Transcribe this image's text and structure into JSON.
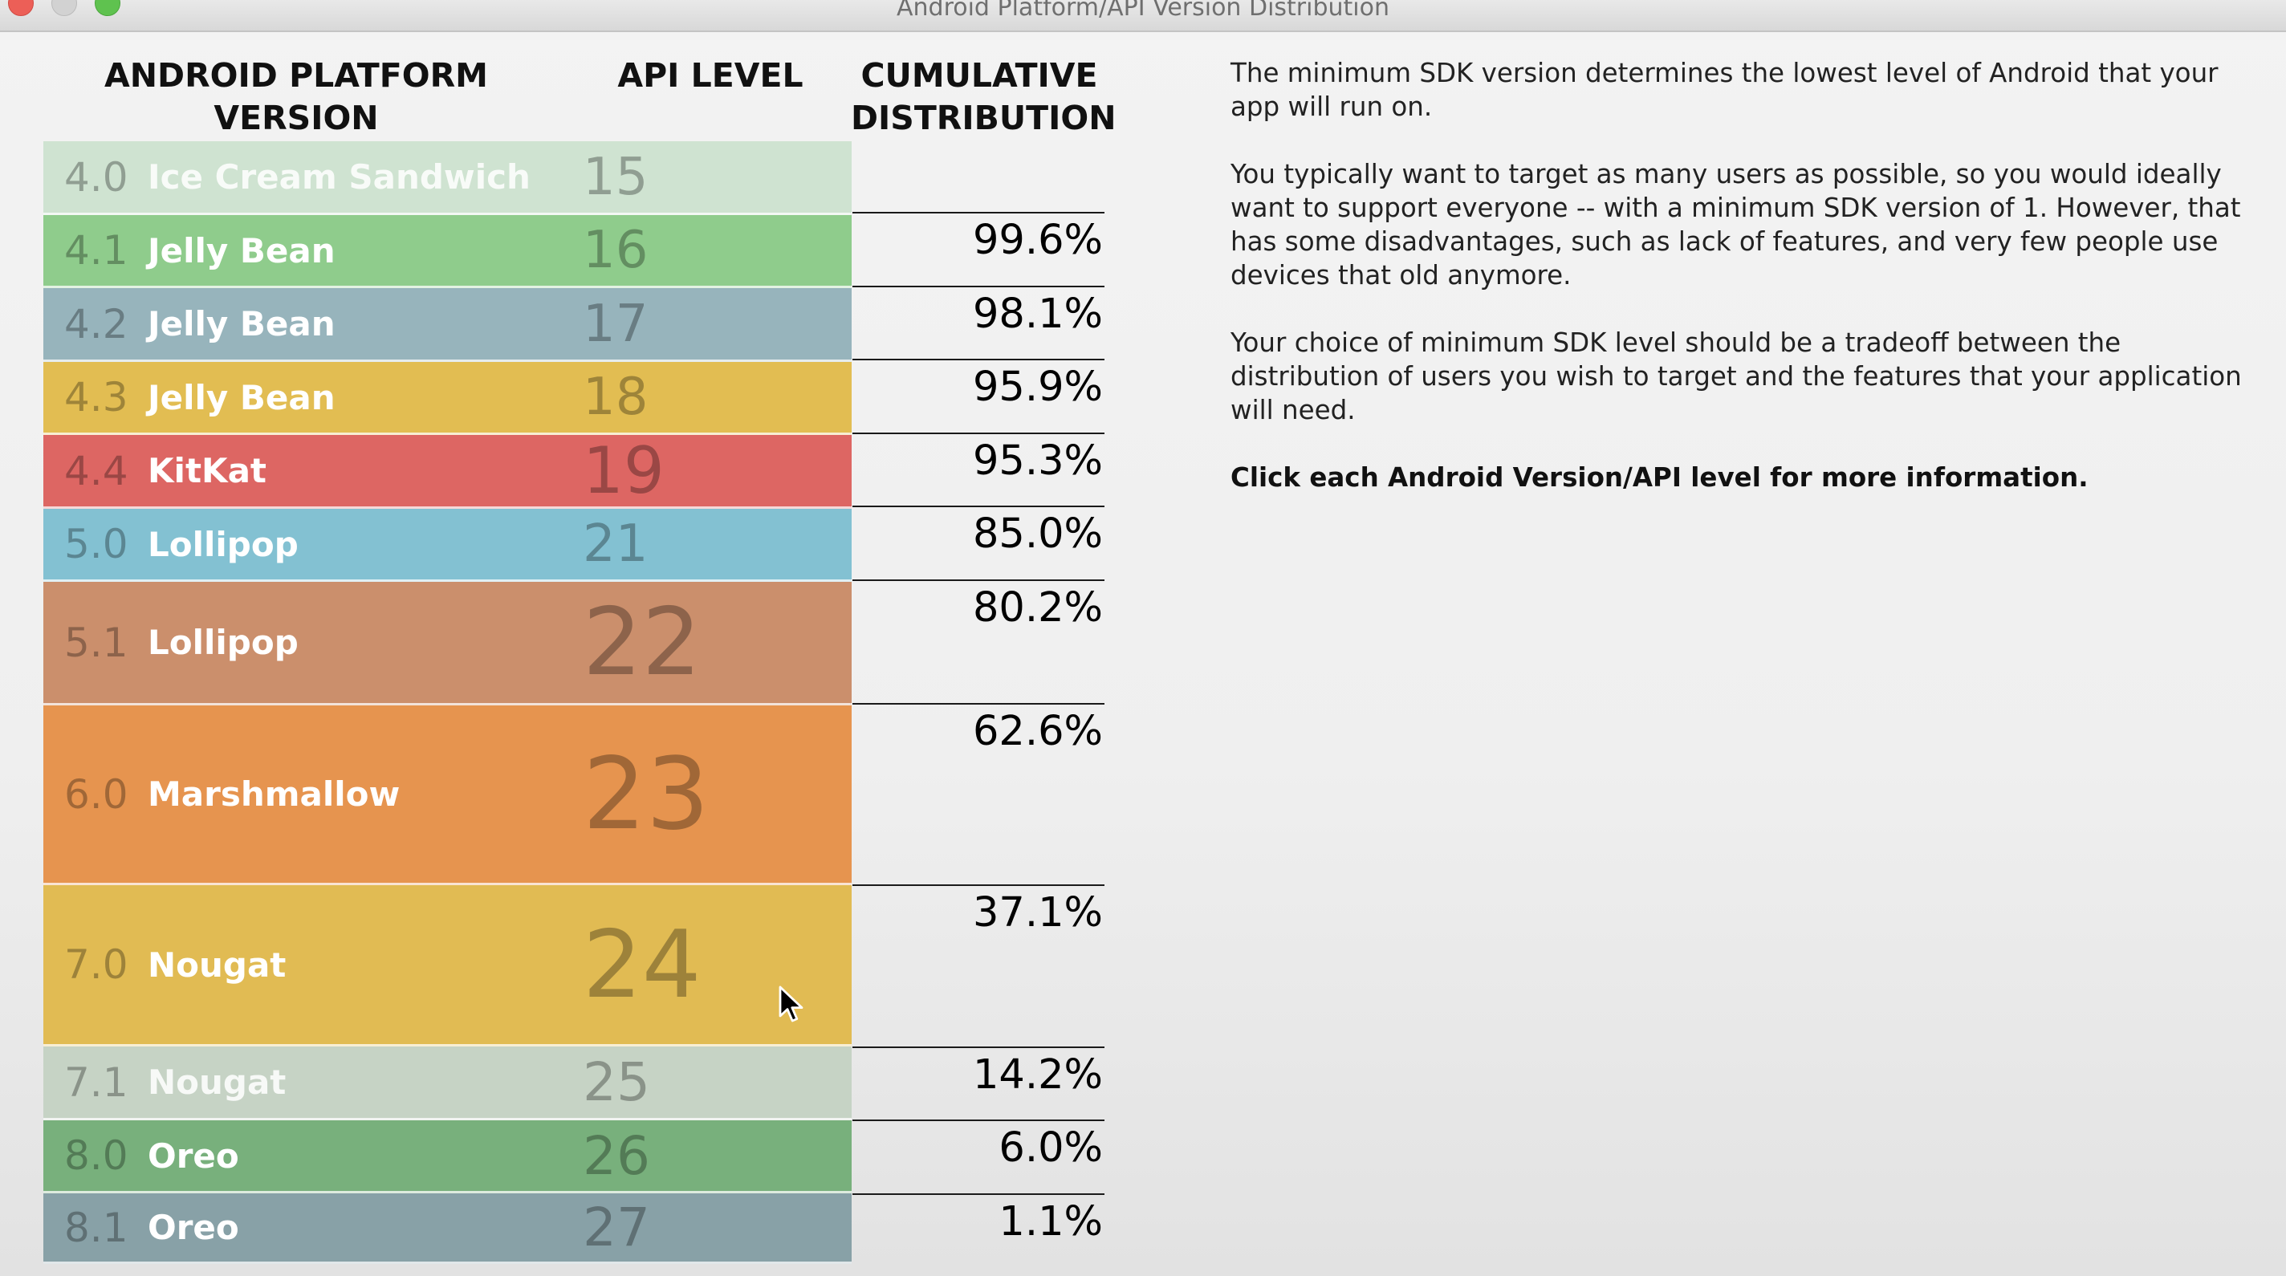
{
  "window": {
    "title": "Android Platform/API Version Distribution"
  },
  "columns": {
    "version": "ANDROID PLATFORM\nVERSION",
    "api": "API LEVEL",
    "cumulative": "CUMULATIVE\nDISTRIBUTION"
  },
  "rows": [
    {
      "version": "4.0",
      "name": "Ice Cream Sandwich",
      "api": "15",
      "cumulative": "",
      "color": "#cfe3d1"
    },
    {
      "version": "4.1",
      "name": "Jelly Bean",
      "api": "16",
      "cumulative": "99.6%",
      "color": "#8fcc8c"
    },
    {
      "version": "4.2",
      "name": "Jelly Bean",
      "api": "17",
      "cumulative": "98.1%",
      "color": "#97b4bc"
    },
    {
      "version": "4.3",
      "name": "Jelly Bean",
      "api": "18",
      "cumulative": "95.9%",
      "color": "#e2bd52"
    },
    {
      "version": "4.4",
      "name": "KitKat",
      "api": "19",
      "cumulative": "95.3%",
      "color": "#dd6663"
    },
    {
      "version": "5.0",
      "name": "Lollipop",
      "api": "21",
      "cumulative": "85.0%",
      "color": "#83c1d2"
    },
    {
      "version": "5.1",
      "name": "Lollipop",
      "api": "22",
      "cumulative": "80.2%",
      "color": "#cb8f6c"
    },
    {
      "version": "6.0",
      "name": "Marshmallow",
      "api": "23",
      "cumulative": "62.6%",
      "color": "#e6944f"
    },
    {
      "version": "7.0",
      "name": "Nougat",
      "api": "24",
      "cumulative": "37.1%",
      "color": "#e1bb53"
    },
    {
      "version": "7.1",
      "name": "Nougat",
      "api": "25",
      "cumulative": "14.2%",
      "color": "#c6d3c5"
    },
    {
      "version": "8.0",
      "name": "Oreo",
      "api": "26",
      "cumulative": "6.0%",
      "color": "#78b07c"
    },
    {
      "version": "8.1",
      "name": "Oreo",
      "api": "27",
      "cumulative": "1.1%",
      "color": "#88a1a7"
    }
  ],
  "info": {
    "p1": "The minimum SDK version determines the lowest level of Android that your app will run on.",
    "p2": "You typically want to target as many users as possible, so you would ideally want to support everyone -- with a minimum SDK version of 1. However, that has some disadvantages, such as lack of features, and very few people use devices that old anymore.",
    "p3": "Your choice of minimum SDK level should be a tradeoff between the distribution of users you wish to target and the features that your application will need.",
    "p4": "Click each Android Version/API level for more information."
  },
  "icons": {
    "cursor": "mouse-pointer-icon"
  }
}
